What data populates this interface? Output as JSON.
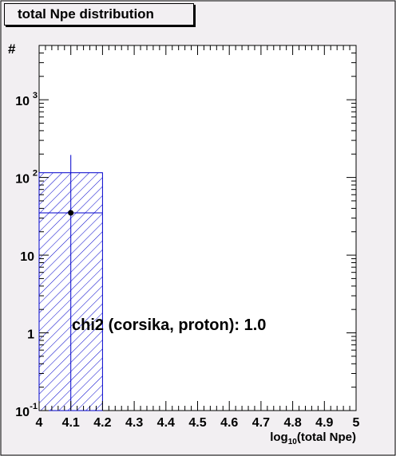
{
  "chart_data": {
    "type": "bar",
    "title": "total Npe distribution",
    "xlabel": "log10(total Npe)",
    "xlabel_main": "log",
    "xlabel_sub": "10",
    "xlabel_rest": "(total Npe)",
    "ylabel": "#",
    "xlim": [
      4,
      5
    ],
    "ylim": [
      0.1,
      5000
    ],
    "ylog": true,
    "grid": false,
    "x_ticks": [
      "4",
      "4.1",
      "4.2",
      "4.3",
      "4.4",
      "4.5",
      "4.6",
      "4.7",
      "4.8",
      "4.9",
      "5"
    ],
    "y_ticks": [
      {
        "value": 0.1,
        "base": "10",
        "exp": "-1"
      },
      {
        "value": 1,
        "base": "1",
        "exp": ""
      },
      {
        "value": 10,
        "base": "10",
        "exp": ""
      },
      {
        "value": 100,
        "base": "10",
        "exp": "2"
      },
      {
        "value": 1000,
        "base": "10",
        "exp": "3"
      }
    ],
    "series": [
      {
        "style": "hatched",
        "color": "#0000cc",
        "bins": [
          {
            "x_low": 4.0,
            "x_high": 4.2,
            "value": 115
          }
        ]
      },
      {
        "style": "points",
        "color": "#000000",
        "error_color": "#0000cc",
        "points": [
          {
            "x": 4.1,
            "y": 35,
            "y_err_high": 195,
            "y_err_low": 0.1
          }
        ]
      }
    ],
    "annotation": "chi2 (corsika, proton): 1.0"
  }
}
